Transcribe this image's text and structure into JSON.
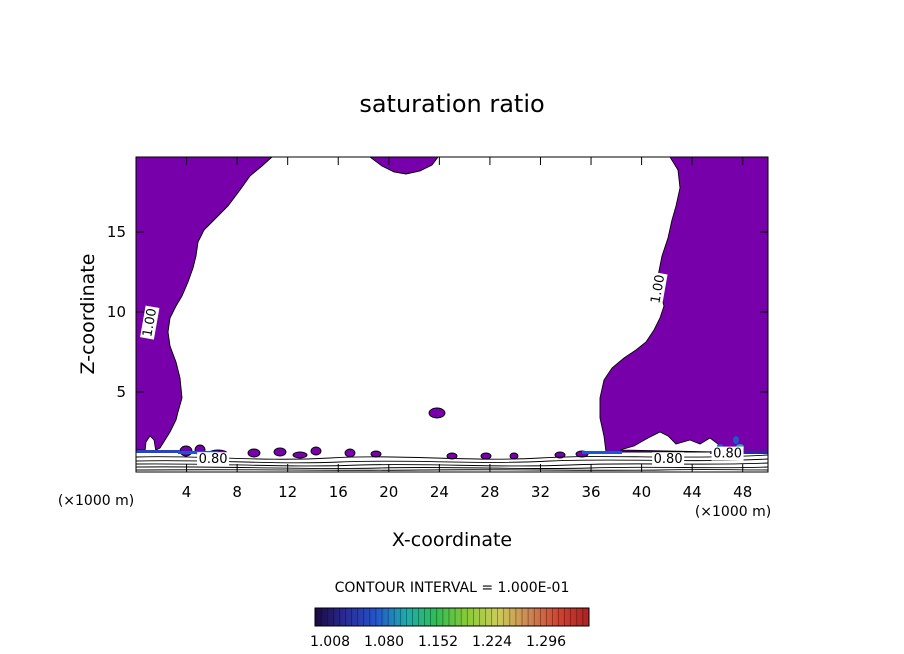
{
  "chart_data": {
    "type": "contour",
    "title": "saturation ratio",
    "xlabel": "X-coordinate",
    "ylabel": "Z-coordinate",
    "x_unit": "(×1000 m)",
    "xlim": [
      0,
      50
    ],
    "ylim": [
      0,
      19.7
    ],
    "x_ticks": [
      4,
      8,
      12,
      16,
      20,
      24,
      28,
      32,
      36,
      40,
      44,
      48
    ],
    "y_ticks": [
      5,
      10,
      15
    ],
    "contour_labels": [
      {
        "text": "1.00",
        "x": 1.4,
        "z": 9.3
      },
      {
        "text": "1.00",
        "x": 41.6,
        "z": 11.4
      },
      {
        "text": "0.80",
        "x": 6.1,
        "z": 0.55
      },
      {
        "text": "0.80",
        "x": 42.1,
        "z": 0.55
      },
      {
        "text": "0.80",
        "x": 46.8,
        "z": 0.9
      }
    ],
    "contour_interval": "CONTOUR INTERVAL = 1.000E-01",
    "colorbar": {
      "ticks": [
        "1.008",
        "1.080",
        "1.152",
        "1.224",
        "1.296"
      ],
      "colors": [
        "#1a0a40",
        "#2a2a9a",
        "#2255cc",
        "#22aaaa",
        "#33bb55",
        "#88cc33",
        "#cccc55",
        "#cc8855",
        "#cc4433",
        "#aa2222"
      ]
    },
    "colors": {
      "supersaturated": "#7700aa"
    }
  }
}
